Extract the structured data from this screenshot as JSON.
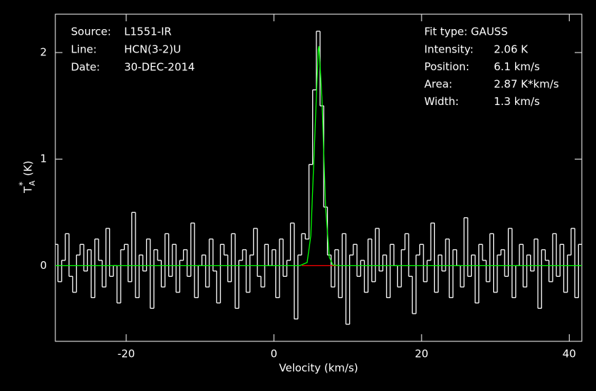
{
  "chart_data": {
    "type": "step",
    "xlabel": "Velocity (km/s)",
    "ylabel": {
      "main": "T",
      "sub": "A",
      "sup": "*",
      "unit": "(K)"
    },
    "info_left": [
      [
        "Source:",
        "L1551-IR"
      ],
      [
        "Line:",
        "HCN(3-2)U"
      ],
      [
        "Date:",
        "30-DEC-2014"
      ]
    ],
    "info_right_title": "Fit type: GAUSS",
    "info_right": [
      [
        "Intensity:",
        "2.06 K"
      ],
      [
        "Position:",
        "6.1 km/s"
      ],
      [
        "Area:",
        "2.87 K*km/s"
      ],
      [
        "Width:",
        "1.3 km/s"
      ]
    ],
    "xlim": [
      -29.6,
      41.7
    ],
    "ylim": [
      -0.71,
      2.36
    ],
    "xticks": [
      -20,
      0,
      20,
      40
    ],
    "yticks": [
      0,
      1,
      2
    ],
    "series": [
      {
        "color": "#ffffff",
        "x": [
          -29.5,
          -29,
          -28.5,
          -28,
          -27.5,
          -27,
          -26.5,
          -26,
          -25.5,
          -25,
          -24.5,
          -24,
          -23.5,
          -23,
          -22.5,
          -22,
          -21.5,
          -21,
          -20.5,
          -20,
          -19.5,
          -19,
          -18.5,
          -18,
          -17.5,
          -17,
          -16.5,
          -16,
          -15.5,
          -15,
          -14.5,
          -14,
          -13.5,
          -13,
          -12.5,
          -12,
          -11.5,
          -11,
          -10.5,
          -10,
          -9.5,
          -9,
          -8.5,
          -8,
          -7.5,
          -7,
          -6.5,
          -6,
          -5.5,
          -5,
          -4.5,
          -4,
          -3.5,
          -3,
          -2.5,
          -2,
          -1.5,
          -1,
          -0.5,
          0,
          0.5,
          1,
          1.5,
          2,
          2.5,
          3,
          3.5,
          4,
          4.5,
          5,
          5.5,
          6,
          6.5,
          7,
          7.5,
          8,
          8.5,
          9,
          9.5,
          10,
          10.5,
          11,
          11.5,
          12,
          12.5,
          13,
          13.5,
          14,
          14.5,
          15,
          15.5,
          16,
          16.5,
          17,
          17.5,
          18,
          18.5,
          19,
          19.5,
          20,
          20.5,
          21,
          21.5,
          22,
          22.5,
          23,
          23.5,
          24,
          24.5,
          25,
          25.5,
          26,
          26.5,
          27,
          27.5,
          28,
          28.5,
          29,
          29.5,
          30,
          30.5,
          31,
          31.5,
          32,
          32.5,
          33,
          33.5,
          34,
          34.5,
          35,
          35.5,
          36,
          36.5,
          37,
          37.5,
          38,
          38.5,
          39,
          39.5,
          40,
          40.5,
          41,
          41.5
        ],
        "values": [
          0.2,
          -0.15,
          0.05,
          0.3,
          -0.1,
          -0.25,
          0.1,
          0.2,
          -0.05,
          0.15,
          -0.3,
          0.25,
          0.05,
          -0.2,
          0.35,
          -0.1,
          0.0,
          -0.35,
          0.15,
          0.2,
          -0.15,
          0.5,
          -0.3,
          0.1,
          -0.05,
          0.25,
          -0.4,
          0.15,
          0.05,
          -0.2,
          0.3,
          -0.1,
          0.2,
          -0.25,
          0.05,
          0.15,
          -0.1,
          0.4,
          -0.3,
          0.0,
          0.1,
          -0.2,
          0.25,
          -0.05,
          -0.35,
          0.2,
          0.1,
          -0.15,
          0.3,
          -0.4,
          0.05,
          0.15,
          -0.25,
          0.1,
          0.35,
          -0.1,
          -0.2,
          0.2,
          0.0,
          0.15,
          -0.3,
          0.25,
          -0.1,
          0.05,
          0.4,
          -0.5,
          0.1,
          0.3,
          0.25,
          0.95,
          1.65,
          2.2,
          1.5,
          0.55,
          0.1,
          -0.2,
          0.15,
          -0.3,
          0.3,
          -0.55,
          0.1,
          0.2,
          -0.1,
          0.05,
          -0.25,
          0.25,
          -0.15,
          0.35,
          -0.05,
          0.1,
          -0.3,
          0.2,
          0.0,
          -0.2,
          0.15,
          0.3,
          -0.1,
          -0.45,
          0.1,
          0.2,
          -0.15,
          0.05,
          0.4,
          -0.25,
          0.1,
          -0.05,
          0.25,
          -0.3,
          0.15,
          0.0,
          -0.2,
          0.45,
          -0.1,
          0.1,
          -0.35,
          0.2,
          0.05,
          -0.15,
          0.3,
          -0.25,
          0.1,
          0.15,
          -0.1,
          0.35,
          -0.3,
          0.0,
          0.2,
          -0.2,
          0.1,
          -0.05,
          0.25,
          -0.4,
          0.15,
          0.05,
          -0.15,
          0.3,
          -0.1,
          0.2,
          -0.25,
          0.1,
          0.35,
          -0.3,
          0.2
        ]
      },
      {
        "color": "#ff0000",
        "x": [
          3.8,
          8.5
        ],
        "values": [
          0,
          0
        ]
      },
      {
        "color": "#00ff00",
        "x": [
          -29.6,
          3.5,
          4.5,
          5,
          5.5,
          6,
          6.1,
          6.5,
          7,
          7.5,
          8,
          9,
          41.7
        ],
        "values": [
          0,
          0,
          0.03,
          0.28,
          1.14,
          2.03,
          2.06,
          1.58,
          0.55,
          0.08,
          0.006,
          0,
          0
        ]
      }
    ]
  }
}
